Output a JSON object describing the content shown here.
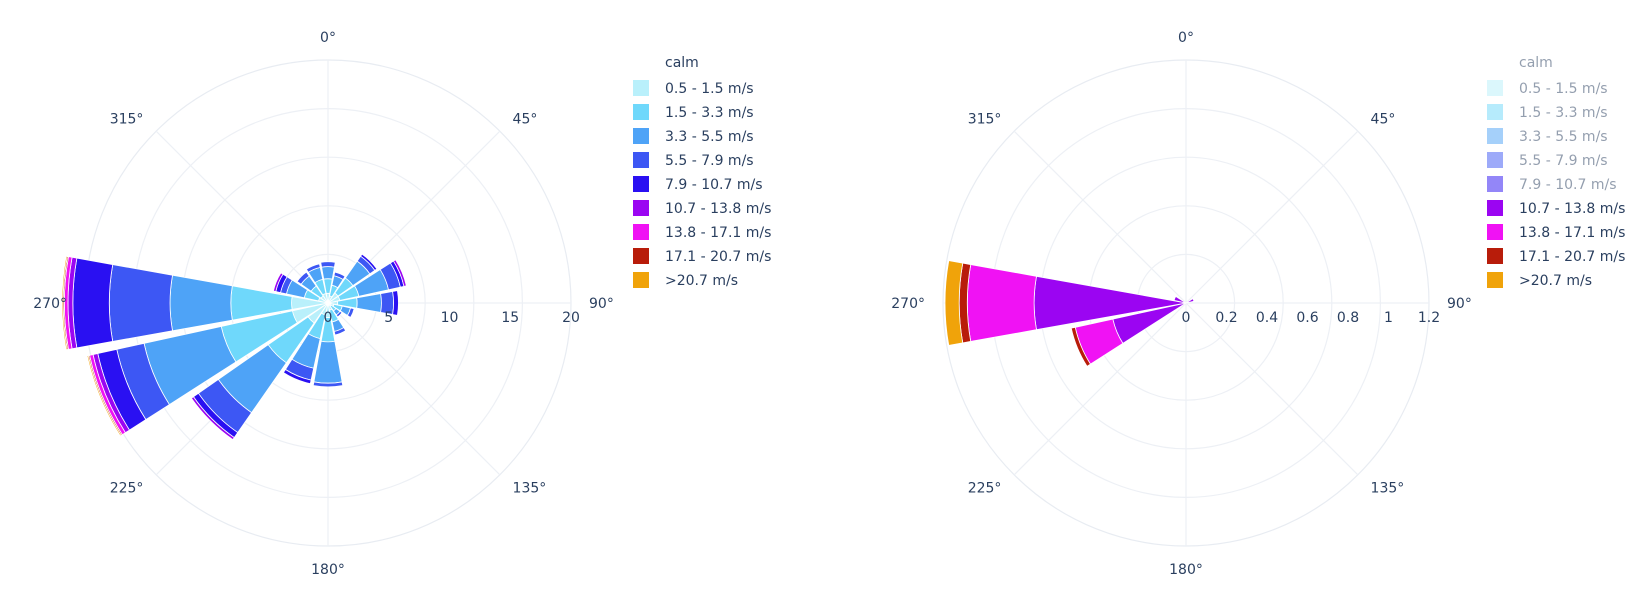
{
  "chart_data": [
    {
      "type": "barpolar",
      "angular_ticks": [
        "0°",
        "45°",
        "90°",
        "135°",
        "180°",
        "225°",
        "270°",
        "315°"
      ],
      "radial_ticks": [
        "0",
        "5",
        "10",
        "15",
        "20"
      ],
      "radial_range": [
        0,
        20
      ],
      "legend_title": "calm",
      "legend_placement": "right",
      "series": [
        {
          "name": "0.5 - 1.5 m/s",
          "color": "#b9f0fb",
          "dimmed": false
        },
        {
          "name": "1.5 - 3.3 m/s",
          "color": "#6fd8fb",
          "dimmed": false
        },
        {
          "name": "3.3 - 5.5 m/s",
          "color": "#4ea3f7",
          "dimmed": false
        },
        {
          "name": "5.5 - 7.9 m/s",
          "color": "#3d57f4",
          "dimmed": false
        },
        {
          "name": "7.9 - 10.7 m/s",
          "color": "#2a10f2",
          "dimmed": false
        },
        {
          "name": "10.7 - 13.8 m/s",
          "color": "#9b05f2",
          "dimmed": false
        },
        {
          "name": "13.8 - 17.1 m/s",
          "color": "#f012f4",
          "dimmed": false
        },
        {
          "name": "17.1 - 20.7 m/s",
          "color": "#b81c0a",
          "dimmed": false
        },
        {
          "name": ">20.7 m/s",
          "color": "#f0a30a",
          "dimmed": false
        }
      ],
      "bars": [
        {
          "direction": 0,
          "stack": [
            0.8,
            1.2,
            1.0,
            0.4
          ]
        },
        {
          "direction": 22.5,
          "stack": [
            0.6,
            0.9,
            0.8,
            0.3
          ]
        },
        {
          "direction": 45,
          "stack": [
            1.0,
            1.5,
            1.7,
            0.5,
            0.2
          ]
        },
        {
          "direction": 67.5,
          "stack": [
            1.0,
            1.6,
            2.5,
            1.0,
            0.3,
            0.2
          ]
        },
        {
          "direction": 90,
          "stack": [
            0.8,
            1.6,
            2.0,
            1.0,
            0.4
          ]
        },
        {
          "direction": 112.5,
          "stack": [
            0.5,
            0.7,
            0.7,
            0.3
          ]
        },
        {
          "direction": 135,
          "stack": [
            0.3,
            0.5,
            0.4,
            0.2
          ]
        },
        {
          "direction": 157.5,
          "stack": [
            0.6,
            1.0,
            0.8,
            0.3
          ]
        },
        {
          "direction": 180,
          "stack": [
            1.2,
            2.0,
            3.4,
            0.3
          ]
        },
        {
          "direction": 202.5,
          "stack": [
            1.0,
            2.0,
            2.5,
            1.0,
            0.3
          ]
        },
        {
          "direction": 225,
          "stack": [
            2.0,
            4.0,
            5.0,
            2.0,
            0.5,
            0.2
          ]
        },
        {
          "direction": 247.5,
          "stack": [
            3.0,
            6.0,
            6.5,
            2.3,
            1.6,
            0.4,
            0.3,
            0.1,
            0.1
          ]
        },
        {
          "direction": 270,
          "stack": [
            3.0,
            5.0,
            5.0,
            5.0,
            3.0,
            0.4,
            0.3,
            0.1,
            0.1
          ]
        },
        {
          "direction": 292.5,
          "stack": [
            0.8,
            1.2,
            1.5,
            0.5,
            0.4,
            0.2
          ]
        },
        {
          "direction": 315,
          "stack": [
            0.7,
            1.0,
            1.0,
            0.4
          ]
        },
        {
          "direction": 337.5,
          "stack": [
            0.8,
            1.2,
            1.0,
            0.3
          ]
        }
      ]
    },
    {
      "type": "barpolar",
      "angular_ticks": [
        "0°",
        "45°",
        "90°",
        "135°",
        "180°",
        "225°",
        "270°",
        "315°"
      ],
      "radial_ticks": [
        "0",
        "0.2",
        "0.4",
        "0.6",
        "0.8",
        "1",
        "1.2"
      ],
      "radial_range": [
        0,
        1.2
      ],
      "legend_title": "calm",
      "legend_placement": "right",
      "series": [
        {
          "name": "0.5 - 1.5 m/s",
          "color": "#b9f0fb",
          "dimmed": true
        },
        {
          "name": "1.5 - 3.3 m/s",
          "color": "#6fd8fb",
          "dimmed": true
        },
        {
          "name": "3.3 - 5.5 m/s",
          "color": "#4ea3f7",
          "dimmed": true
        },
        {
          "name": "5.5 - 7.9 m/s",
          "color": "#3d57f4",
          "dimmed": true
        },
        {
          "name": "7.9 - 10.7 m/s",
          "color": "#2a10f2",
          "dimmed": true
        },
        {
          "name": "10.7 - 13.8 m/s",
          "color": "#9b05f2",
          "dimmed": false
        },
        {
          "name": "13.8 - 17.1 m/s",
          "color": "#f012f4",
          "dimmed": false
        },
        {
          "name": "17.1 - 20.7 m/s",
          "color": "#b81c0a",
          "dimmed": false
        },
        {
          "name": ">20.7 m/s",
          "color": "#f0a30a",
          "dimmed": false
        }
      ],
      "bars": [
        {
          "direction": 67.5,
          "stack": [
            0,
            0,
            0,
            0,
            0,
            0.04
          ]
        },
        {
          "direction": 247.5,
          "stack": [
            0,
            0,
            0,
            0,
            0,
            0.37,
            0.19,
            0.02
          ]
        },
        {
          "direction": 270,
          "stack": [
            0,
            0,
            0,
            0,
            0,
            0.75,
            0.33,
            0.04,
            0.07
          ]
        },
        {
          "direction": 292.5,
          "stack": [
            0,
            0,
            0,
            0,
            0,
            0.06
          ]
        }
      ]
    }
  ]
}
